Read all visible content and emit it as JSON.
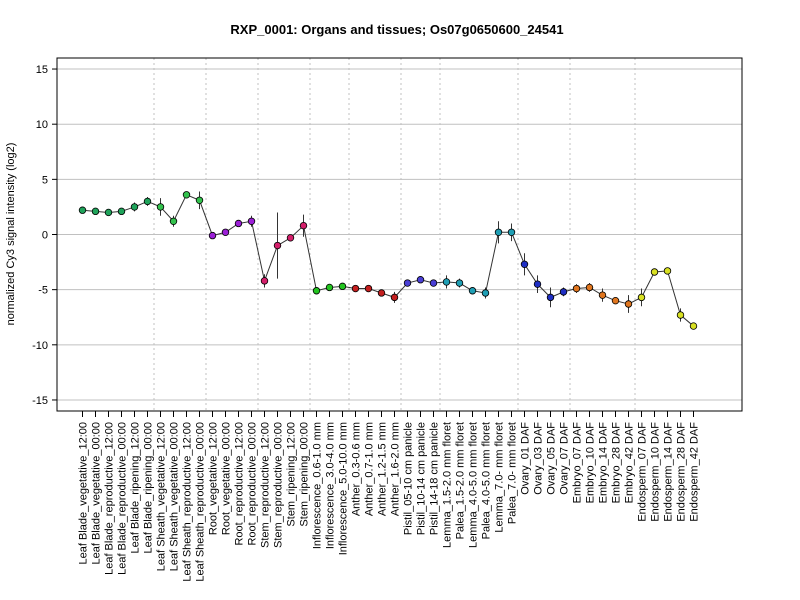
{
  "chart_data": {
    "type": "line",
    "title": "RXP_0001: Organs and tissues; Os07g0650600_24541",
    "xlabel": "",
    "ylabel": "normalized Cy3 signal intensity (log2)",
    "ylim": [
      -16,
      16
    ],
    "yticks": [
      -15,
      -10,
      -5,
      0,
      5,
      10,
      15
    ],
    "grid": true,
    "categories": [
      "Leaf Blade_vegetative_12:00",
      "Leaf Blade_vegetative_00:00",
      "Leaf Blade_reproductive_12:00",
      "Leaf Blade_reproductive_00:00",
      "Leaf Blade_ripening_12:00",
      "Leaf Blade_ripening_00:00",
      "Leaf Sheath_vegetative_12:00",
      "Leaf Sheath_vegetative_00:00",
      "Leaf Sheath_reproductive_12:00",
      "Leaf Sheath_reproductive_00:00",
      "Root_vegetative_12:00",
      "Root_vegetative_00:00",
      "Root_reproductive_12:00",
      "Root_reproductive_00:00",
      "Stem_reproductive_12:00",
      "Stem_reproductive_00:00",
      "Stem_ripening_12:00",
      "Stem_ripening_00:00",
      "Inflorescence_0.6-1.0 mm",
      "Inflorescence_3.0-4.0 mm",
      "Inflorescence_5.0-10.0 mm",
      "Anther_0.3-0.6 mm",
      "Anther_0.7-1.0 mm",
      "Anther_1.2-1.5 mm",
      "Anther_1.6-2.0 mm",
      "Pistil_05-10 cm panicle",
      "Pistil_10-14 cm panicle",
      "Pistil_14-18 cm panicle",
      "Lemma_1.5-2.0 mm floret",
      "Palea_1.5-2.0 mm floret",
      "Lemma_4.0-5.0 mm floret",
      "Palea_4.0-5.0 mm floret",
      "Lemma_7.0- mm floret",
      "Palea_7.0- mm floret",
      "Ovary_01 DAF",
      "Ovary_03 DAF",
      "Ovary_05 DAF",
      "Ovary_07 DAF",
      "Embryo_07 DAF",
      "Embryo_10 DAF",
      "Embryo_14 DAF",
      "Embryo_28 DAF",
      "Embryo_42 DAF",
      "Endosperm_07 DAF",
      "Endosperm_10 DAF",
      "Endosperm_14 DAF",
      "Endosperm_28 DAF",
      "Endosperm_42 DAF"
    ],
    "values": [
      2.2,
      2.1,
      2.0,
      2.1,
      2.5,
      3.0,
      2.5,
      1.2,
      3.6,
      3.1,
      -0.1,
      0.2,
      1.0,
      1.2,
      -4.2,
      -1.0,
      -0.3,
      0.8,
      -5.1,
      -4.8,
      -4.7,
      -4.9,
      -4.9,
      -5.3,
      -5.7,
      -4.4,
      -4.1,
      -4.4,
      -4.3,
      -4.4,
      -5.1,
      -5.3,
      0.2,
      0.2,
      -2.7,
      -4.5,
      -5.7,
      -5.2,
      -4.9,
      -4.8,
      -5.5,
      -6.0,
      -6.3,
      -5.7,
      -3.4,
      -3.3,
      -7.3,
      -8.3
    ],
    "errors": [
      0.2,
      0.2,
      0.2,
      0.2,
      0.4,
      0.4,
      0.8,
      0.5,
      0.3,
      0.8,
      0.2,
      0.2,
      0.3,
      0.5,
      0.6,
      3.0,
      0.3,
      1.0,
      0.2,
      0.3,
      0.2,
      0.2,
      0.2,
      0.3,
      0.5,
      0.3,
      0.3,
      0.3,
      0.6,
      0.4,
      0.3,
      0.5,
      1.0,
      0.8,
      1.0,
      0.8,
      0.9,
      0.4,
      0.4,
      0.4,
      0.6,
      0.3,
      0.8,
      0.8,
      0.3,
      0.3,
      0.6,
      0.3
    ],
    "point_colors": [
      "#1fa35a",
      "#1fa35a",
      "#1fa35a",
      "#1fa35a",
      "#1fa35a",
      "#1fa35a",
      "#33c24d",
      "#33c24d",
      "#33c24d",
      "#33c24d",
      "#9b1fd6",
      "#9b1fd6",
      "#9b1fd6",
      "#9b1fd6",
      "#d41f6b",
      "#d41f6b",
      "#d41f6b",
      "#d41f6b",
      "#22c41f",
      "#22c41f",
      "#22c41f",
      "#c41f1f",
      "#c41f1f",
      "#c41f1f",
      "#c41f1f",
      "#4a3fd6",
      "#4a3fd6",
      "#4a3fd6",
      "#1f9fb5",
      "#1f9fb5",
      "#1f9fb5",
      "#1f9fb5",
      "#1f9fb5",
      "#1f9fb5",
      "#1f2fc4",
      "#1f2fc4",
      "#1f2fc4",
      "#1f2fc4",
      "#e0761f",
      "#e0761f",
      "#e0761f",
      "#e0761f",
      "#e0761f",
      "#d8e022",
      "#d8e022",
      "#d8e022",
      "#d8e022",
      "#d8e022"
    ],
    "line_color": "#333333",
    "grid_color": "#c0c0c0"
  }
}
